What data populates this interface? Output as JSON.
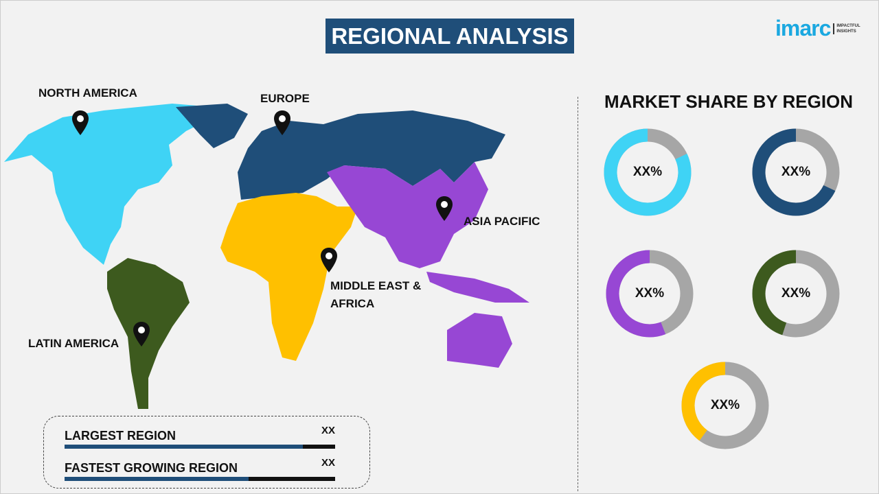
{
  "header": {
    "title": "REGIONAL ANALYSIS",
    "logo": {
      "word": "imarc",
      "tagline_1": "IMPACTFUL",
      "tagline_2": "INSIGHTS"
    }
  },
  "map": {
    "regions": [
      {
        "label": "NORTH AMERICA",
        "color": "#3fd3f5"
      },
      {
        "label": "EUROPE",
        "color": "#1f4e79"
      },
      {
        "label": "ASIA PACIFIC",
        "color": "#9747d4"
      },
      {
        "label": "MIDDLE EAST &",
        "label2": "AFRICA",
        "color": "#ffc000"
      },
      {
        "label": "LATIN AMERICA",
        "color": "#3d5a1e"
      }
    ],
    "pin_icon": "map-pin-icon"
  },
  "market_share": {
    "title": "MARKET SHARE BY REGION",
    "remainder_color": "#a6a6a6",
    "donuts": [
      {
        "value_label": "XX%",
        "color": "#3fd3f5",
        "fill": 0.82
      },
      {
        "value_label": "XX%",
        "color": "#1f4e79",
        "fill": 0.68
      },
      {
        "value_label": "XX%",
        "color": "#9747d4",
        "fill": 0.56
      },
      {
        "value_label": "XX%",
        "color": "#3d5a1e",
        "fill": 0.45
      },
      {
        "value_label": "XX%",
        "color": "#ffc000",
        "fill": 0.4
      }
    ]
  },
  "summary": {
    "largest": {
      "label": "LARGEST REGION",
      "value": "XX",
      "fill": 0.88
    },
    "fastest": {
      "label": "FASTEST GROWING REGION",
      "value": "XX",
      "fill": 0.68
    }
  }
}
